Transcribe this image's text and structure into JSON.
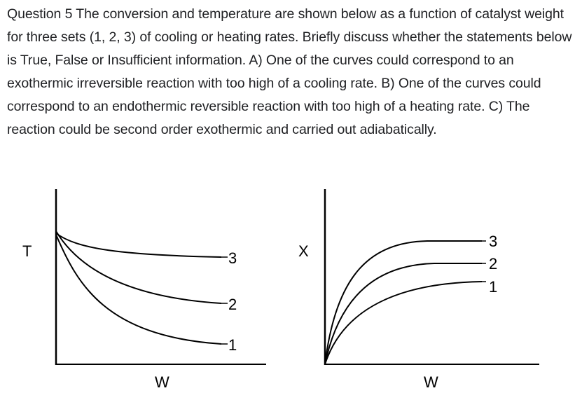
{
  "question": {
    "text": "Question 5 The conversion and temperature are shown below as a function of catalyst weight for three sets (1, 2, 3) of cooling or heating rates. Briefly discuss whether the statements below is True, False or Insufficient information. A) One of the curves could correspond to an exothermic irreversible reaction with too high of a cooling rate. B) One of the curves could correspond to an endothermic reversible reaction with too high of a heating rate. C) The reaction could be second order exothermic and carried out adiabatically."
  },
  "chart_data": [
    {
      "type": "line",
      "ylabel": "T",
      "xlabel": "W",
      "series": [
        {
          "name": "3",
          "trend": "slight decrease, levels off highest"
        },
        {
          "name": "2",
          "trend": "moderate decrease"
        },
        {
          "name": "1",
          "trend": "steepest decrease, levels off lowest"
        }
      ]
    },
    {
      "type": "line",
      "ylabel": "X",
      "xlabel": "W",
      "series": [
        {
          "name": "3",
          "trend": "rises from zero, plateaus highest"
        },
        {
          "name": "2",
          "trend": "rises from zero, plateaus in middle"
        },
        {
          "name": "1",
          "trend": "rises from zero, plateaus lowest"
        }
      ]
    }
  ]
}
